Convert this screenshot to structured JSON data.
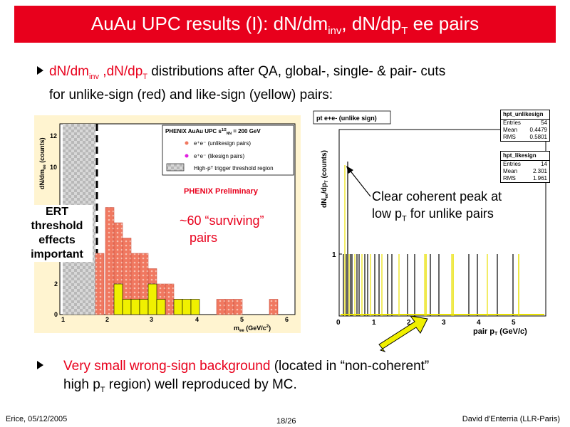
{
  "title": {
    "pre": "AuAu UPC results (I): dN/dm",
    "sub1": "inv",
    "mid": ", dN/dp",
    "sub2": "T",
    "post": " ee pairs"
  },
  "bullet1": {
    "red1": "dN/dm",
    "red1_sub": "inv",
    "red2": " ,dN/dp",
    "red2_sub": "T",
    "rest": " distributions after QA, global-, single- & pair- cuts",
    "line2": "for unlike-sign (red) and like-sign (yellow) pairs:"
  },
  "bullet2": {
    "red": "Very small wrong-sign background",
    "rest1": " (located in “non-coherent”",
    "line2_pre": "high p",
    "line2_sub": "T",
    "line2_post": " region) well reproduced by MC."
  },
  "left_plot": {
    "legend_title": "PHENIX AuAu UPC s",
    "legend_title_sup": "1/2",
    "legend_title_sub": "NN",
    "legend_title_post": " = 200 GeV",
    "legend_items": [
      "e⁺e⁻ (unlikesign pairs)",
      "e⁺e⁻ (likesign pairs)",
      "High-pᵀ trigger threshold region"
    ],
    "preliminary": "PHENIX Preliminary",
    "ylabel": "dN/dm",
    "ylabel_sub": "ee",
    "ylabel_post": " (counts)",
    "xlabel": "m",
    "xlabel_sub": "ee",
    "xlabel_post": " (GeV/c",
    "xlabel_sup": "2",
    "xlabel_end": ")",
    "xticks": [
      "1",
      "2",
      "3",
      "4",
      "5",
      "6"
    ],
    "yticks": [
      "0",
      "2",
      "10",
      "12"
    ]
  },
  "right_plot": {
    "hist_title": "pt e+e- (unlike sign)",
    "ylabel": "dN",
    "ylabel_sub": "ee",
    "ylabel_post": "/dp",
    "ylabel_sub2": "T",
    "ylabel_end": " (counts)",
    "xlabel": "pair p",
    "xlabel_sub": "T",
    "xlabel_post": " (GeV/c)",
    "xticks": [
      "0",
      "1",
      "2",
      "3",
      "4",
      "5"
    ],
    "ytick": "1",
    "stats_unlike": {
      "name": "hpt_unlikesign",
      "rows": [
        [
          "Entries",
          "54"
        ],
        [
          "Mean",
          "0.4479"
        ],
        [
          "RMS",
          "0.5801"
        ]
      ]
    },
    "stats_like": {
      "name": "hpt_likesign",
      "rows": [
        [
          "Entries",
          "14"
        ],
        [
          "Mean",
          "2.301"
        ],
        [
          "RMS",
          "1.961"
        ]
      ]
    }
  },
  "annotations": {
    "ert": [
      "ERT",
      "threshold",
      "effects",
      "important"
    ],
    "surviving": [
      "~60 “surviving”",
      "pairs"
    ],
    "coherent_line1": "Clear coherent peak at",
    "coherent_line2_pre": "low p",
    "coherent_line2_sub": "T",
    "coherent_line2_post": " for unlike pairs"
  },
  "footer": {
    "left": "Erice, 05/12/2005",
    "center": "18/26",
    "right": "David d'Enterria (LLR-Paris)"
  },
  "colors": {
    "title_bg": "#e8001c",
    "unlike": "#f07860",
    "like": "#f0f000"
  }
}
